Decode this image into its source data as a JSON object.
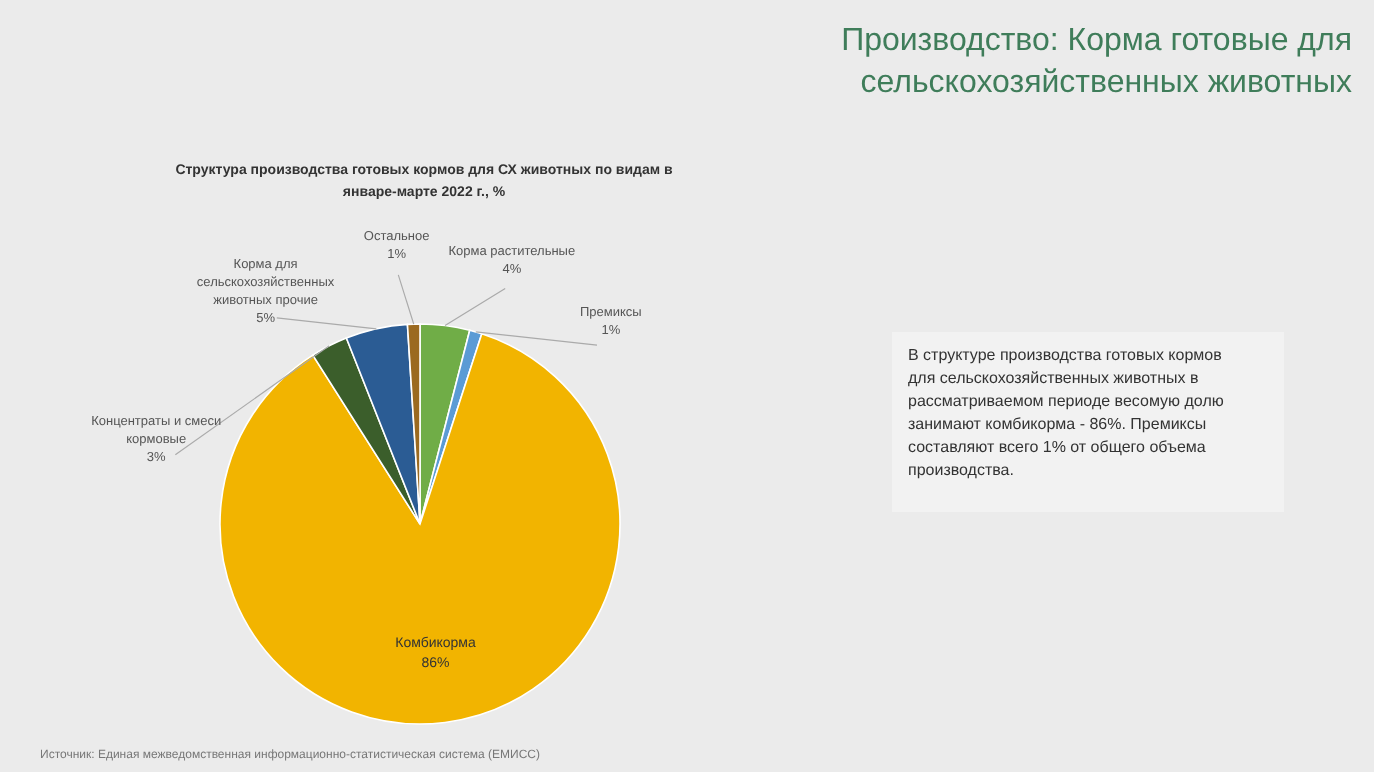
{
  "chart_data": {
    "type": "pie",
    "title": "Производство: Корма готовые для сельскохозяйственных животных",
    "subtitle": "Структура производства готовых кормов для СХ животных по видам в январе-марте 2022 г., %",
    "categories": [
      "Корма растительные",
      "Премиксы",
      "Комбикорма",
      "Концентраты и смеси кормовые",
      "Корма для сельскохозяйственных животных прочие",
      "Остальное"
    ],
    "values": [
      4,
      1,
      86,
      3,
      5,
      1
    ],
    "value_labels": [
      "4%",
      "1%",
      "86%",
      "3%",
      "5%",
      "1%"
    ],
    "colors": [
      "#70ad47",
      "#5b9bd5",
      "#f2b400",
      "#3b5e2b",
      "#2b5c94",
      "#9b6a20"
    ],
    "annotations": [
      "В структуре производства готовых кормов для сельскохозяйственных животных в рассматриваемом периоде весомую долю занимают комбикорма - 86%. Премиксы составляют всего 1% от общего объема производства.",
      "Источник: Единая межведомственная информационно-статистическая система (ЕМИСС)"
    ]
  }
}
